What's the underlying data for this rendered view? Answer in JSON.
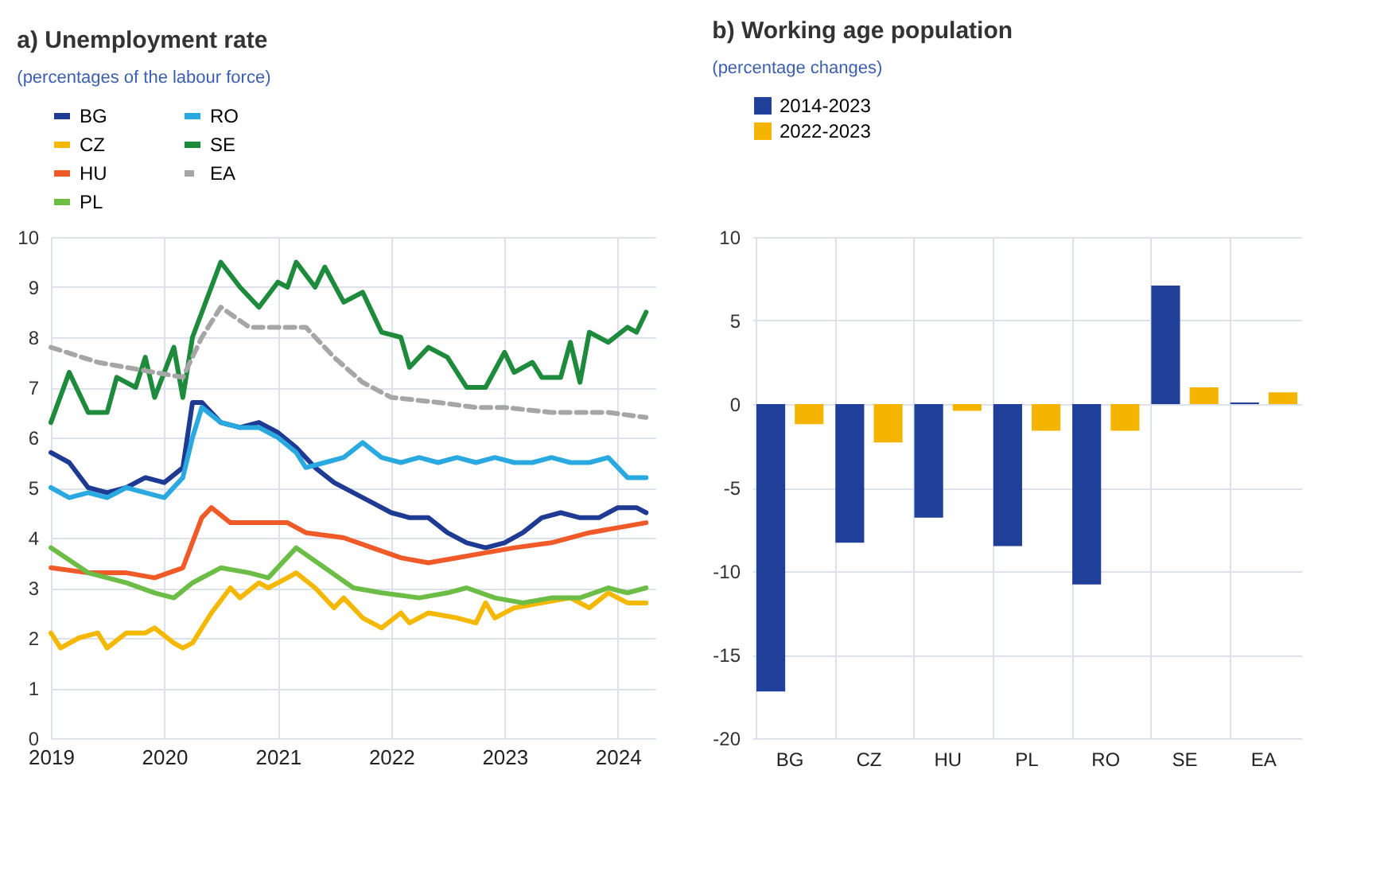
{
  "chart_data": [
    {
      "type": "line",
      "title": "a) Unemployment rate",
      "subtitle": "(percentages of the labour force)",
      "legend": "top",
      "grid": true,
      "xlim": [
        "2019-01",
        "2024-05"
      ],
      "xticks": [
        "2019",
        "2020",
        "2021",
        "2022",
        "2023",
        "2024"
      ],
      "ylim": [
        0,
        10
      ],
      "yticks": [
        0,
        1,
        2,
        3,
        4,
        5,
        6,
        7,
        8,
        9,
        10
      ],
      "series": [
        {
          "name": "BG",
          "color": "#1f3a93",
          "x": [
            "2019-01",
            "2019-03",
            "2019-05",
            "2019-07",
            "2019-09",
            "2019-11",
            "2020-01",
            "2020-03",
            "2020-04",
            "2020-05",
            "2020-07",
            "2020-09",
            "2020-11",
            "2021-01",
            "2021-03",
            "2021-05",
            "2021-07",
            "2021-09",
            "2021-11",
            "2022-01",
            "2022-03",
            "2022-05",
            "2022-07",
            "2022-09",
            "2022-11",
            "2023-01",
            "2023-03",
            "2023-05",
            "2023-07",
            "2023-09",
            "2023-11",
            "2024-01",
            "2024-03",
            "2024-04"
          ],
          "values": [
            5.7,
            5.5,
            5.0,
            4.9,
            5.0,
            5.2,
            5.1,
            5.4,
            6.7,
            6.7,
            6.3,
            6.2,
            6.3,
            6.1,
            5.8,
            5.4,
            5.1,
            4.9,
            4.7,
            4.5,
            4.4,
            4.4,
            4.1,
            3.9,
            3.8,
            3.9,
            4.1,
            4.4,
            4.5,
            4.4,
            4.4,
            4.6,
            4.6,
            4.5
          ]
        },
        {
          "name": "CZ",
          "color": "#f5b800",
          "x": [
            "2019-01",
            "2019-02",
            "2019-04",
            "2019-06",
            "2019-07",
            "2019-09",
            "2019-11",
            "2019-12",
            "2020-02",
            "2020-03",
            "2020-04",
            "2020-06",
            "2020-08",
            "2020-09",
            "2020-11",
            "2020-12",
            "2021-02",
            "2021-03",
            "2021-05",
            "2021-07",
            "2021-08",
            "2021-10",
            "2021-12",
            "2022-02",
            "2022-03",
            "2022-05",
            "2022-08",
            "2022-10",
            "2022-11",
            "2022-12",
            "2023-02",
            "2023-05",
            "2023-08",
            "2023-10",
            "2023-12",
            "2024-02",
            "2024-04"
          ],
          "values": [
            2.1,
            1.8,
            2.0,
            2.1,
            1.8,
            2.1,
            2.1,
            2.2,
            1.9,
            1.8,
            1.9,
            2.5,
            3.0,
            2.8,
            3.1,
            3.0,
            3.2,
            3.3,
            3.0,
            2.6,
            2.8,
            2.4,
            2.2,
            2.5,
            2.3,
            2.5,
            2.4,
            2.3,
            2.7,
            2.4,
            2.6,
            2.7,
            2.8,
            2.6,
            2.9,
            2.7,
            2.7
          ]
        },
        {
          "name": "HU",
          "color": "#ef5a28",
          "x": [
            "2019-01",
            "2019-05",
            "2019-09",
            "2019-12",
            "2020-03",
            "2020-05",
            "2020-06",
            "2020-08",
            "2020-12",
            "2021-02",
            "2021-04",
            "2021-08",
            "2021-11",
            "2022-02",
            "2022-05",
            "2022-08",
            "2022-11",
            "2023-02",
            "2023-06",
            "2023-10",
            "2024-01",
            "2024-04"
          ],
          "values": [
            3.4,
            3.3,
            3.3,
            3.2,
            3.4,
            4.4,
            4.6,
            4.3,
            4.3,
            4.3,
            4.1,
            4.0,
            3.8,
            3.6,
            3.5,
            3.6,
            3.7,
            3.8,
            3.9,
            4.1,
            4.2,
            4.3
          ]
        },
        {
          "name": "PL",
          "color": "#6cbd45",
          "x": [
            "2019-01",
            "2019-05",
            "2019-09",
            "2019-12",
            "2020-02",
            "2020-04",
            "2020-07",
            "2020-10",
            "2020-12",
            "2021-03",
            "2021-06",
            "2021-09",
            "2021-12",
            "2022-04",
            "2022-07",
            "2022-09",
            "2022-12",
            "2023-03",
            "2023-06",
            "2023-09",
            "2023-12",
            "2024-02",
            "2024-04"
          ],
          "values": [
            3.8,
            3.3,
            3.1,
            2.9,
            2.8,
            3.1,
            3.4,
            3.3,
            3.2,
            3.8,
            3.4,
            3.0,
            2.9,
            2.8,
            2.9,
            3.0,
            2.8,
            2.7,
            2.8,
            2.8,
            3.0,
            2.9,
            3.0
          ]
        },
        {
          "name": "RO",
          "color": "#29a9e0",
          "x": [
            "2019-01",
            "2019-03",
            "2019-05",
            "2019-07",
            "2019-09",
            "2019-11",
            "2020-01",
            "2020-03",
            "2020-04",
            "2020-05",
            "2020-07",
            "2020-09",
            "2020-11",
            "2021-01",
            "2021-03",
            "2021-04",
            "2021-06",
            "2021-08",
            "2021-10",
            "2021-12",
            "2022-02",
            "2022-04",
            "2022-06",
            "2022-08",
            "2022-10",
            "2022-12",
            "2023-02",
            "2023-04",
            "2023-06",
            "2023-08",
            "2023-10",
            "2023-12",
            "2024-02",
            "2024-04"
          ],
          "values": [
            5.0,
            4.8,
            4.9,
            4.8,
            5.0,
            4.9,
            4.8,
            5.2,
            6.0,
            6.6,
            6.3,
            6.2,
            6.2,
            6.0,
            5.7,
            5.4,
            5.5,
            5.6,
            5.9,
            5.6,
            5.5,
            5.6,
            5.5,
            5.6,
            5.5,
            5.6,
            5.5,
            5.5,
            5.6,
            5.5,
            5.5,
            5.6,
            5.2,
            5.2
          ]
        },
        {
          "name": "SE",
          "color": "#1e8a3c",
          "x": [
            "2019-01",
            "2019-03",
            "2019-05",
            "2019-07",
            "2019-08",
            "2019-10",
            "2019-11",
            "2019-12",
            "2020-02",
            "2020-03",
            "2020-04",
            "2020-07",
            "2020-09",
            "2020-11",
            "2021-01",
            "2021-02",
            "2021-03",
            "2021-05",
            "2021-06",
            "2021-08",
            "2021-10",
            "2021-12",
            "2022-02",
            "2022-03",
            "2022-05",
            "2022-07",
            "2022-09",
            "2022-11",
            "2023-01",
            "2023-02",
            "2023-04",
            "2023-05",
            "2023-07",
            "2023-08",
            "2023-09",
            "2023-10",
            "2023-12",
            "2024-02",
            "2024-03",
            "2024-04"
          ],
          "values": [
            6.3,
            7.3,
            6.5,
            6.5,
            7.2,
            7.0,
            7.6,
            6.8,
            7.8,
            6.8,
            8.0,
            9.5,
            9.0,
            8.6,
            9.1,
            9.0,
            9.5,
            9.0,
            9.4,
            8.7,
            8.9,
            8.1,
            8.0,
            7.4,
            7.8,
            7.6,
            7.0,
            7.0,
            7.7,
            7.3,
            7.5,
            7.2,
            7.2,
            7.9,
            7.1,
            8.1,
            7.9,
            8.2,
            8.1,
            8.5
          ]
        },
        {
          "name": "EA",
          "color": "#a6a6a6",
          "line_style": "dashed",
          "x": [
            "2019-01",
            "2019-06",
            "2019-12",
            "2020-03",
            "2020-05",
            "2020-07",
            "2020-10",
            "2021-01",
            "2021-04",
            "2021-07",
            "2021-10",
            "2022-01",
            "2022-06",
            "2022-10",
            "2023-01",
            "2023-06",
            "2023-12",
            "2024-04"
          ],
          "values": [
            7.8,
            7.5,
            7.3,
            7.2,
            8.0,
            8.6,
            8.2,
            8.2,
            8.2,
            7.6,
            7.1,
            6.8,
            6.7,
            6.6,
            6.6,
            6.5,
            6.5,
            6.4
          ]
        }
      ]
    },
    {
      "type": "bar",
      "title": "b) Working age population",
      "subtitle": "(percentage changes)",
      "legend": "top",
      "grid": true,
      "categories": [
        "BG",
        "CZ",
        "HU",
        "PL",
        "RO",
        "SE",
        "EA"
      ],
      "ylim": [
        -20,
        10
      ],
      "yticks": [
        -20,
        -15,
        -10,
        -5,
        0,
        5,
        10
      ],
      "series": [
        {
          "name": "2014-2023",
          "color": "#1f3f99",
          "values": [
            -17.2,
            -8.3,
            -6.8,
            -8.5,
            -10.8,
            7.1,
            0.1
          ]
        },
        {
          "name": "2022-2023",
          "color": "#f5b400",
          "values": [
            -1.2,
            -2.3,
            -0.4,
            -1.6,
            -1.6,
            1.0,
            0.7
          ]
        }
      ]
    }
  ]
}
